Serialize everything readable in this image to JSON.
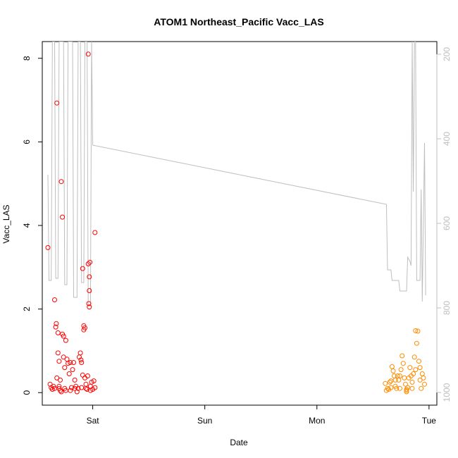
{
  "chart_data": {
    "type": "scatter",
    "title": "ATOM1 Northeast_Pacific Vacc_LAS",
    "xlabel": "Date",
    "ylabel": "Vacc_LAS",
    "x_ticks": [
      "Sat",
      "Sun",
      "Mon",
      "Tue"
    ],
    "x_tick_days": [
      1,
      2,
      3,
      4
    ],
    "xlim_days": [
      0.55,
      4.07
    ],
    "ylim": [
      -0.3,
      8.4
    ],
    "y_ticks": [
      0,
      2,
      4,
      6,
      8
    ],
    "y2_ticks": [
      200,
      400,
      600,
      800,
      1000
    ],
    "y2lim": [
      1030,
      170
    ],
    "grid": false,
    "colors": {
      "series1": "#ff0000",
      "series2": "#ff8c00",
      "secondary_line": "#bebebe",
      "axis": "#000000",
      "y2_axis": "#bebebe"
    },
    "series": [
      {
        "points": [
          [
            0.6,
            3.47
          ],
          [
            0.62,
            0.2
          ],
          [
            0.63,
            0.12
          ],
          [
            0.64,
            0.08
          ],
          [
            0.65,
            0.15
          ],
          [
            0.66,
            2.22
          ],
          [
            0.67,
            1.57
          ],
          [
            0.675,
            1.65
          ],
          [
            0.68,
            6.93
          ],
          [
            0.68,
            0.35
          ],
          [
            0.69,
            1.43
          ],
          [
            0.69,
            0.95
          ],
          [
            0.7,
            0.75
          ],
          [
            0.7,
            0.1
          ],
          [
            0.71,
            0.3
          ],
          [
            0.71,
            0.05
          ],
          [
            0.72,
            5.05
          ],
          [
            0.73,
            4.2
          ],
          [
            0.73,
            1.4
          ],
          [
            0.74,
            1.35
          ],
          [
            0.74,
            0.85
          ],
          [
            0.75,
            0.6
          ],
          [
            0.75,
            0.1
          ],
          [
            0.76,
            1.25
          ],
          [
            0.77,
            0.8
          ],
          [
            0.78,
            0.7
          ],
          [
            0.79,
            0.45
          ],
          [
            0.8,
            0.72
          ],
          [
            0.8,
            0.05
          ],
          [
            0.81,
            0.12
          ],
          [
            0.82,
            0.55
          ],
          [
            0.83,
            0.72
          ],
          [
            0.84,
            0.3
          ],
          [
            0.85,
            0.15
          ],
          [
            0.86,
            0.02
          ],
          [
            0.87,
            0.1
          ],
          [
            0.88,
            0.85
          ],
          [
            0.89,
            0.95
          ],
          [
            0.895,
            0.78
          ],
          [
            0.9,
            0.72
          ],
          [
            0.91,
            0.42
          ],
          [
            0.91,
            2.97
          ],
          [
            0.92,
            1.6
          ],
          [
            0.92,
            1.5
          ],
          [
            0.93,
            1.55
          ],
          [
            0.93,
            0.35
          ],
          [
            0.94,
            0.2
          ],
          [
            0.95,
            0.08
          ],
          [
            0.955,
            0.4
          ],
          [
            0.96,
            3.08
          ],
          [
            0.96,
            8.1
          ],
          [
            0.965,
            2.13
          ],
          [
            0.97,
            2.44
          ],
          [
            0.97,
            2.77
          ],
          [
            0.97,
            2.05
          ],
          [
            0.975,
            3.12
          ],
          [
            0.98,
            0.15
          ],
          [
            0.99,
            0.25
          ],
          [
            1.0,
            0.08
          ],
          [
            1.02,
            3.83
          ],
          [
            1.02,
            0.12
          ],
          [
            1.01,
            0.28
          ],
          [
            0.72,
            0.02
          ],
          [
            0.76,
            0.05
          ],
          [
            0.84,
            0.1
          ],
          [
            0.9,
            0.12
          ],
          [
            0.94,
            0.1
          ],
          [
            0.98,
            0.05
          ],
          [
            0.66,
            0.1
          ],
          [
            0.7,
            0.15
          ]
        ]
      },
      {
        "points": [
          [
            3.61,
            0.22
          ],
          [
            3.62,
            0.05
          ],
          [
            3.63,
            0.1
          ],
          [
            3.64,
            0.08
          ],
          [
            3.65,
            0.25
          ],
          [
            3.66,
            0.28
          ],
          [
            3.67,
            0.62
          ],
          [
            3.68,
            0.52
          ],
          [
            3.69,
            0.4
          ],
          [
            3.7,
            0.15
          ],
          [
            3.71,
            0.1
          ],
          [
            3.72,
            0.4
          ],
          [
            3.73,
            0.3
          ],
          [
            3.74,
            0.1
          ],
          [
            3.75,
            0.55
          ],
          [
            3.76,
            0.88
          ],
          [
            3.77,
            0.7
          ],
          [
            3.78,
            0.35
          ],
          [
            3.79,
            0.2
          ],
          [
            3.8,
            0.05
          ],
          [
            3.8,
            0.02
          ],
          [
            3.81,
            0.12
          ],
          [
            3.82,
            0.35
          ],
          [
            3.83,
            0.6
          ],
          [
            3.84,
            0.4
          ],
          [
            3.85,
            0.25
          ],
          [
            3.86,
            0.45
          ],
          [
            3.87,
            0.85
          ],
          [
            3.88,
            1.48
          ],
          [
            3.89,
            1.18
          ],
          [
            3.9,
            1.47
          ],
          [
            3.91,
            0.75
          ],
          [
            3.92,
            0.3
          ],
          [
            3.93,
            0.1
          ],
          [
            3.94,
            0.45
          ],
          [
            3.95,
            0.35
          ],
          [
            3.96,
            0.2
          ],
          [
            3.8,
            0.08
          ],
          [
            3.85,
            0.1
          ],
          [
            3.88,
            0.55
          ],
          [
            3.74,
            0.4
          ],
          [
            3.7,
            0.3
          ],
          [
            3.92,
            0.6
          ],
          [
            3.66,
            0.12
          ]
        ]
      }
    ],
    "secondary_line": [
      [
        0.6,
        485
      ],
      [
        0.61,
        735
      ],
      [
        0.63,
        735
      ],
      [
        0.64,
        170
      ],
      [
        0.66,
        170
      ],
      [
        0.67,
        730
      ],
      [
        0.69,
        730
      ],
      [
        0.7,
        170
      ],
      [
        0.74,
        170
      ],
      [
        0.75,
        745
      ],
      [
        0.77,
        745
      ],
      [
        0.78,
        170
      ],
      [
        0.82,
        170
      ],
      [
        0.83,
        775
      ],
      [
        0.86,
        775
      ],
      [
        0.87,
        170
      ],
      [
        0.89,
        170
      ],
      [
        0.9,
        740
      ],
      [
        0.92,
        740
      ],
      [
        0.93,
        170
      ],
      [
        0.95,
        170
      ],
      [
        0.96,
        795
      ],
      [
        0.98,
        795
      ],
      [
        0.99,
        170
      ],
      [
        1.0,
        415
      ],
      [
        3.62,
        555
      ],
      [
        3.63,
        710
      ],
      [
        3.66,
        710
      ],
      [
        3.67,
        735
      ],
      [
        3.73,
        735
      ],
      [
        3.74,
        760
      ],
      [
        3.8,
        760
      ],
      [
        3.81,
        680
      ],
      [
        3.83,
        690
      ],
      [
        3.84,
        700
      ],
      [
        3.85,
        170
      ],
      [
        3.86,
        525
      ],
      [
        3.87,
        170
      ],
      [
        3.88,
        170
      ],
      [
        3.89,
        735
      ],
      [
        3.92,
        735
      ],
      [
        3.93,
        520
      ],
      [
        3.94,
        785
      ],
      [
        3.96,
        410
      ],
      [
        3.97,
        770
      ]
    ]
  }
}
